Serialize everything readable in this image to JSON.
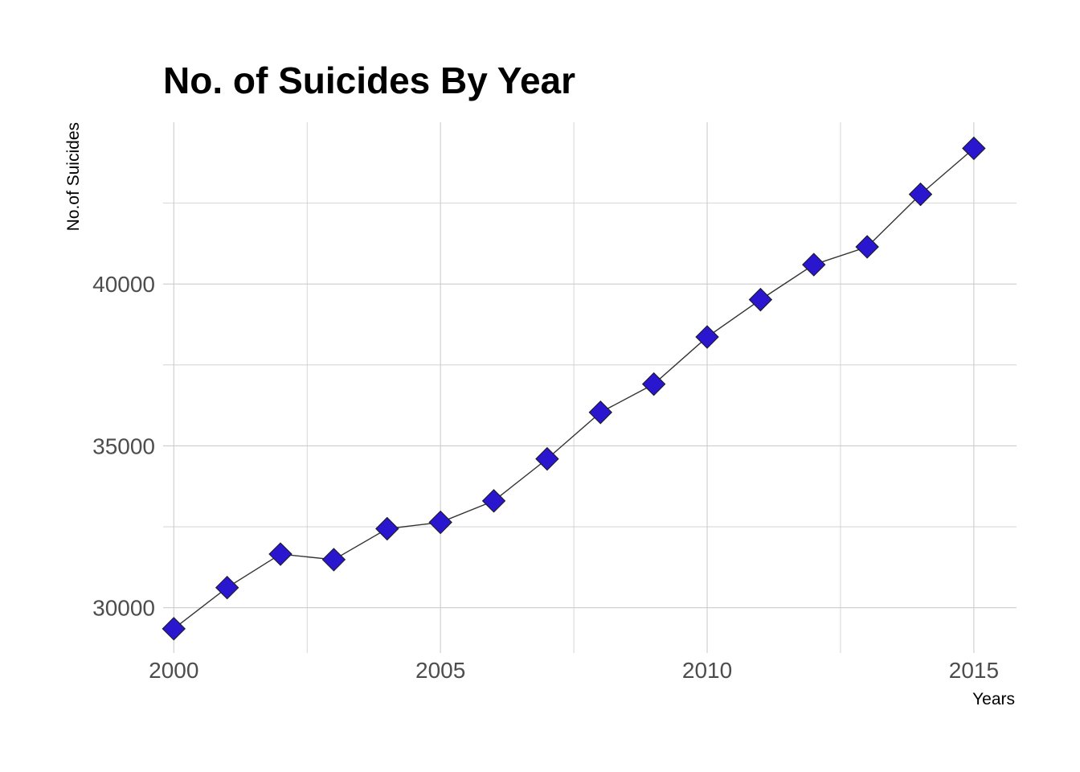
{
  "chart_data": {
    "type": "line",
    "title": "No. of Suicides By Year",
    "xlabel": "Years",
    "ylabel": "No.of Suicides",
    "x": [
      2000,
      2001,
      2002,
      2003,
      2004,
      2005,
      2006,
      2007,
      2008,
      2009,
      2010,
      2011,
      2012,
      2013,
      2014,
      2015
    ],
    "series": [
      {
        "values": [
          29350,
          30620,
          31655,
          31484,
          32439,
          32637,
          33300,
          34598,
          36035,
          36909,
          38364,
          39518,
          40600,
          41149,
          42773,
          44193
        ]
      }
    ],
    "xlim": [
      1999.8,
      2015.8
    ],
    "ylim": [
      28600,
      45000
    ],
    "x_ticks": [
      2000,
      2005,
      2010,
      2015
    ],
    "x_tick_labels": [
      "2000",
      "2005",
      "2010",
      "2015"
    ],
    "y_ticks": [
      30000,
      35000,
      40000
    ],
    "y_tick_labels": [
      "30000",
      "35000",
      "40000"
    ],
    "grid": true,
    "legend": "none",
    "colors": {
      "point_fill": "#2a16cf",
      "line": "#333333",
      "grid": "#cccccc"
    }
  }
}
